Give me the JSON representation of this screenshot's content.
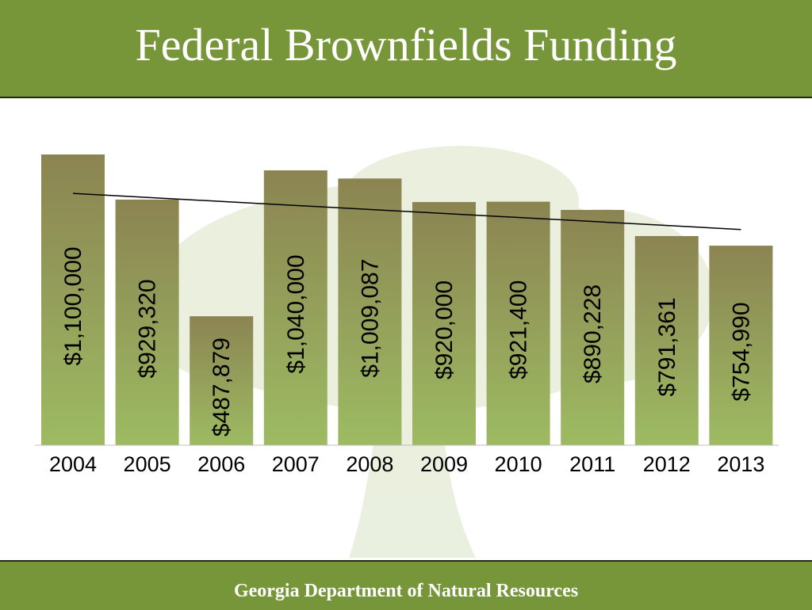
{
  "slide": {
    "title": "Federal Brownfields Funding",
    "footer": "Georgia Department of Natural Resources"
  },
  "colors": {
    "header_bg": "#77963a",
    "bar_top": "#8b8452",
    "bar_bottom": "#9dbb62",
    "tree_watermark": "#e8eedb",
    "trendline": "#000000"
  },
  "chart_data": {
    "type": "bar",
    "title": "",
    "xlabel": "",
    "ylabel": "",
    "categories": [
      "2004",
      "2005",
      "2006",
      "2007",
      "2008",
      "2009",
      "2010",
      "2011",
      "2012",
      "2013"
    ],
    "values": [
      1100000,
      929320,
      487879,
      1040000,
      1009087,
      920000,
      921400,
      890228,
      791361,
      754990
    ],
    "data_labels": [
      "$1,100,000",
      "$929,320",
      "$487,879",
      "$1,040,000",
      "$1,009,087",
      "$920,000",
      "$921,400",
      "$890,228",
      "$791,361",
      "$754,990"
    ],
    "ylim": [
      0,
      1100000
    ],
    "trendline": "linear",
    "grid": false,
    "legend": "none"
  }
}
